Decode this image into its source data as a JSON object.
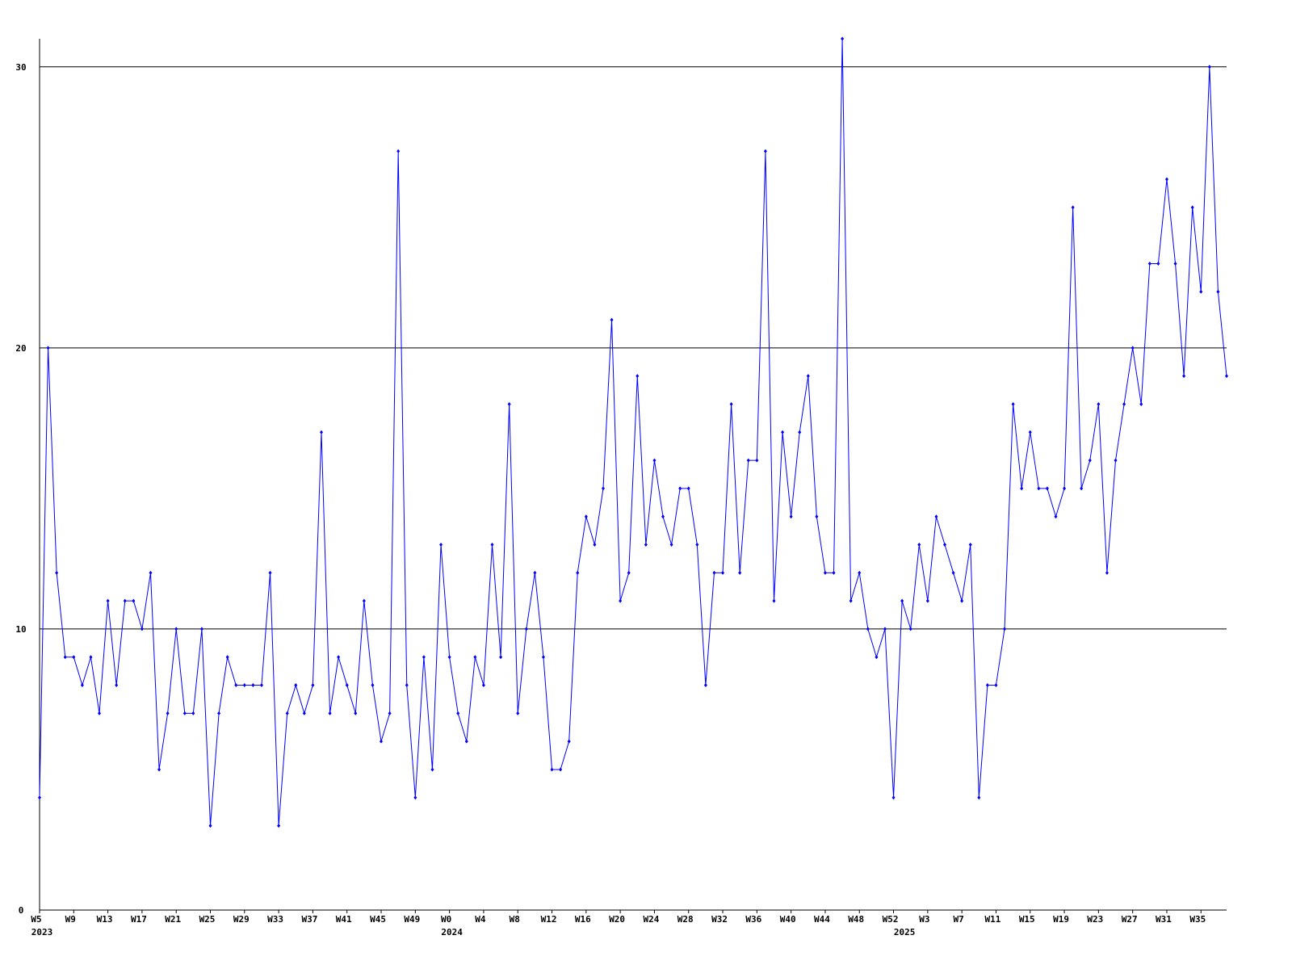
{
  "chart_data": {
    "type": "line",
    "categories": [
      "W5",
      null,
      null,
      null,
      "W9",
      null,
      null,
      null,
      "W13",
      null,
      null,
      null,
      "W17",
      null,
      null,
      null,
      "W21",
      null,
      null,
      null,
      "W25",
      null,
      null,
      null,
      "W29",
      null,
      null,
      null,
      "W33",
      null,
      null,
      null,
      "W37",
      null,
      null,
      null,
      "W41",
      null,
      null,
      null,
      "W45",
      null,
      null,
      null,
      "W49",
      null,
      null,
      null,
      "W0",
      null,
      null,
      null,
      "W4",
      null,
      null,
      null,
      "W8",
      null,
      null,
      null,
      "W12",
      null,
      null,
      null,
      "W16",
      null,
      null,
      null,
      "W20",
      null,
      null,
      null,
      "W24",
      null,
      null,
      null,
      "W28",
      null,
      null,
      null,
      "W32",
      null,
      null,
      null,
      "W36",
      null,
      null,
      null,
      "W40",
      null,
      null,
      null,
      "W44",
      null,
      null,
      null,
      "W48",
      null,
      null,
      null,
      "W52",
      null,
      null,
      null,
      "W3",
      null,
      null,
      null,
      "W7",
      null,
      null,
      null,
      "W11",
      null,
      null,
      null,
      "W15",
      null,
      null,
      null,
      "W19",
      null,
      null,
      null,
      "W23",
      null,
      null,
      null,
      "W27",
      null,
      null,
      null,
      "W31",
      null,
      null,
      null,
      "W35",
      null,
      null,
      null
    ],
    "years": [
      "2023",
      null,
      null,
      null,
      null,
      null,
      null,
      null,
      null,
      null,
      null,
      null,
      null,
      null,
      null,
      null,
      null,
      null,
      null,
      null,
      null,
      null,
      null,
      null,
      null,
      null,
      null,
      null,
      null,
      null,
      null,
      null,
      null,
      null,
      null,
      null,
      null,
      null,
      null,
      null,
      null,
      null,
      null,
      null,
      null,
      null,
      null,
      null,
      "2024",
      null,
      null,
      null,
      null,
      null,
      null,
      null,
      null,
      null,
      null,
      null,
      null,
      null,
      null,
      null,
      null,
      null,
      null,
      null,
      null,
      null,
      null,
      null,
      null,
      null,
      null,
      null,
      null,
      null,
      null,
      null,
      null,
      null,
      null,
      null,
      null,
      null,
      null,
      null,
      null,
      null,
      null,
      null,
      null,
      null,
      null,
      null,
      null,
      null,
      null,
      null,
      null,
      "2025",
      null,
      null,
      null,
      null,
      null,
      null,
      null,
      null,
      null,
      null,
      null,
      null,
      null,
      null,
      null,
      null,
      null,
      null,
      null,
      null,
      null,
      null,
      null,
      null,
      null,
      null,
      null,
      null,
      null,
      null,
      null,
      null,
      null,
      null,
      null,
      null,
      null,
      null
    ],
    "series": [
      {
        "color": "#0000ff",
        "values": [
          4,
          20,
          12,
          9,
          9,
          8,
          9,
          7,
          11,
          8,
          11,
          11,
          10,
          12,
          5,
          7,
          10,
          7,
          7,
          10,
          3,
          7,
          9,
          8,
          8,
          8,
          8,
          12,
          3,
          7,
          8,
          7,
          8,
          17,
          7,
          9,
          8,
          7,
          11,
          8,
          6,
          7,
          27,
          8,
          4,
          9,
          5,
          13,
          9,
          7,
          6,
          9,
          8,
          13,
          9,
          18,
          7,
          10,
          12,
          9,
          5,
          5,
          6,
          12,
          14,
          13,
          15,
          21,
          11,
          12,
          19,
          13,
          16,
          14,
          13,
          15,
          15,
          13,
          8,
          12,
          12,
          18,
          12,
          16,
          16,
          27,
          11,
          17,
          14,
          17,
          19,
          14,
          12,
          12,
          31,
          11,
          12,
          10,
          9,
          10,
          4,
          11,
          10,
          13,
          11,
          14,
          13,
          12,
          11,
          13,
          4,
          8,
          8,
          10,
          18,
          15,
          17,
          15,
          15,
          14,
          15,
          25,
          15,
          16,
          18,
          12,
          16,
          18,
          20,
          18,
          23,
          23,
          26,
          23,
          19,
          25,
          22,
          30,
          22,
          19
        ]
      }
    ],
    "ylim": [
      0,
      31
    ],
    "yticks": [
      0,
      10,
      20,
      30
    ],
    "grid": true
  }
}
